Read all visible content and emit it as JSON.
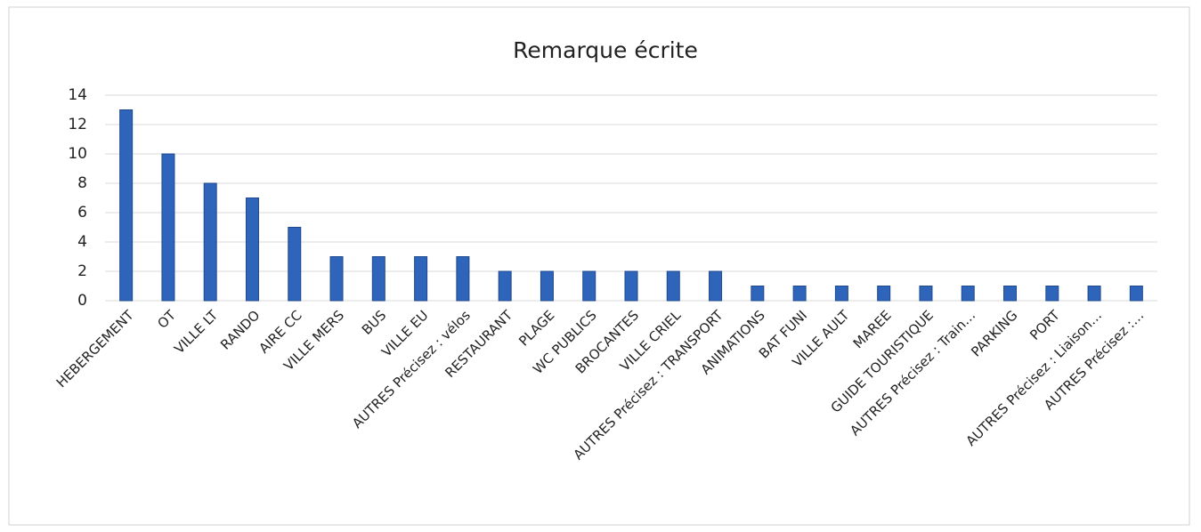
{
  "chart_data": {
    "type": "bar",
    "title": "Remarque écrite",
    "categories": [
      "HEBERGEMENT",
      "OT",
      "VILLE LT",
      "RANDO",
      "AIRE CC",
      "VILLE MERS",
      "BUS",
      "VILLE EU",
      "AUTRES Précisez : vélos",
      "RESTAURANT",
      "PLAGE",
      "WC PUBLICS",
      "BROCANTES",
      "VILLE CRIEL",
      "AUTRES Précisez : TRANSPORT",
      "ANIMATIONS",
      "BAT FUNI",
      "VILLE AULT",
      "MAREE",
      "GUIDE TOURISTIQUE",
      "AUTRES Précisez : Train…",
      "PARKING",
      "PORT",
      "AUTRES Précisez : Liaison…",
      "AUTRES Précisez :…"
    ],
    "values": [
      13,
      10,
      8,
      7,
      5,
      3,
      3,
      3,
      3,
      2,
      2,
      2,
      2,
      2,
      2,
      1,
      1,
      1,
      1,
      1,
      1,
      1,
      1,
      1,
      1
    ],
    "color": "#2e64b9",
    "ylim": [
      0,
      14
    ],
    "yticks": [
      0,
      2,
      4,
      6,
      8,
      10,
      12,
      14
    ],
    "grid": true
  }
}
